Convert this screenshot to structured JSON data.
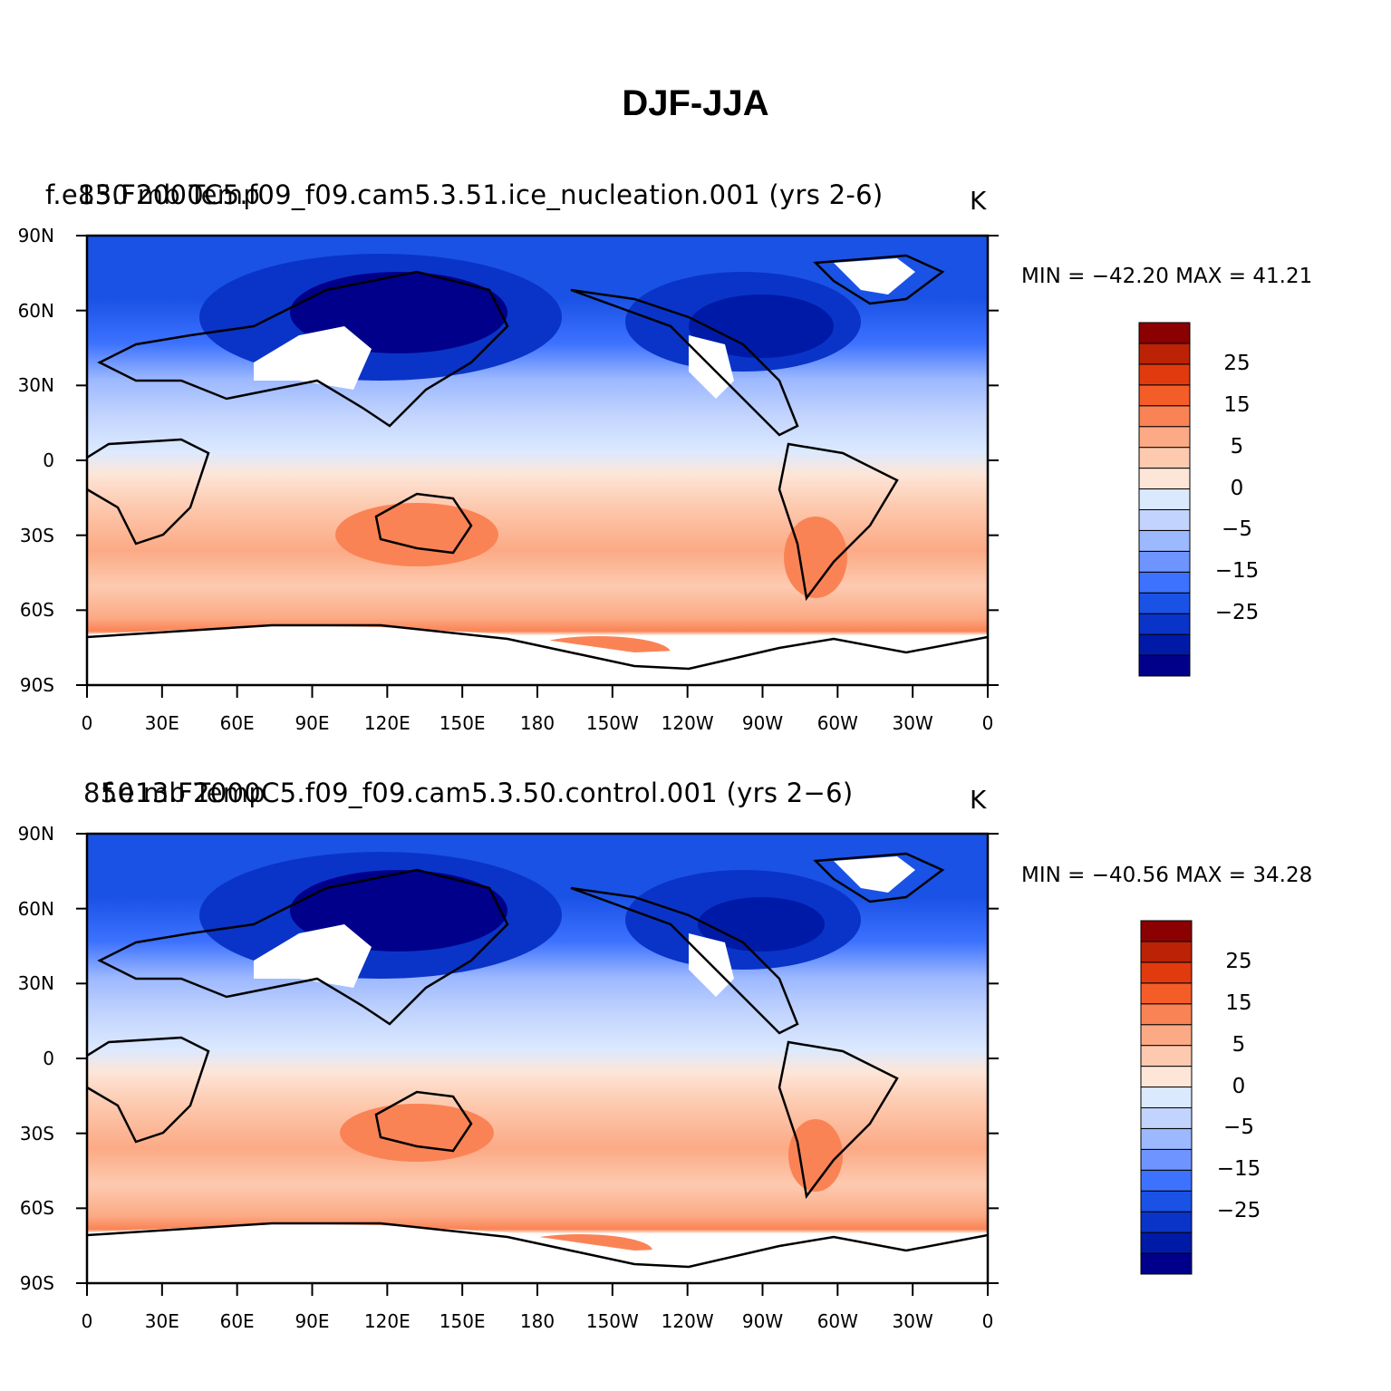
{
  "title": "DJF-JJA",
  "panels": [
    {
      "id": "top",
      "case_name": "f.e13.F2000C5.f09_f09.cam5.3.51.ice_nucleation.001 (yrs 2-6)",
      "variable": "850 mb Temp",
      "units": "K",
      "min_label": "MIN = −42.20",
      "max_label": "MAX =   41.21"
    },
    {
      "id": "bottom",
      "case_name": "f.e13.F2000C5.f09_f09.cam5.3.50.control.001 (yrs 2−6)",
      "variable": "850 mb Temp",
      "units": "K",
      "min_label": "MIN = −40.56",
      "max_label": "MAX =   34.28"
    }
  ],
  "lat_ticks": [
    "90N",
    "60N",
    "30N",
    "0",
    "30S",
    "60S",
    "90S"
  ],
  "lon_ticks": [
    "0",
    "30E",
    "60E",
    "90E",
    "120E",
    "150E",
    "180",
    "150W",
    "120W",
    "90W",
    "60W",
    "30W",
    "0"
  ],
  "colorbar": {
    "colors": [
      "#00008b",
      "#001aa8",
      "#0a34c8",
      "#1a52e6",
      "#3d72ff",
      "#6e94ff",
      "#9cb8ff",
      "#c2d4fe",
      "#dbe9ff",
      "#fde6d8",
      "#fdcab0",
      "#fcaa85",
      "#fa8355",
      "#f55d28",
      "#e13a0e",
      "#bb2206",
      "#8b0000"
    ],
    "labels": [
      "25",
      "15",
      "5",
      "0",
      "−5",
      "−15",
      "−25"
    ]
  },
  "colors": {
    "land_outline": "#000000",
    "missing": "#ffffff"
  }
}
